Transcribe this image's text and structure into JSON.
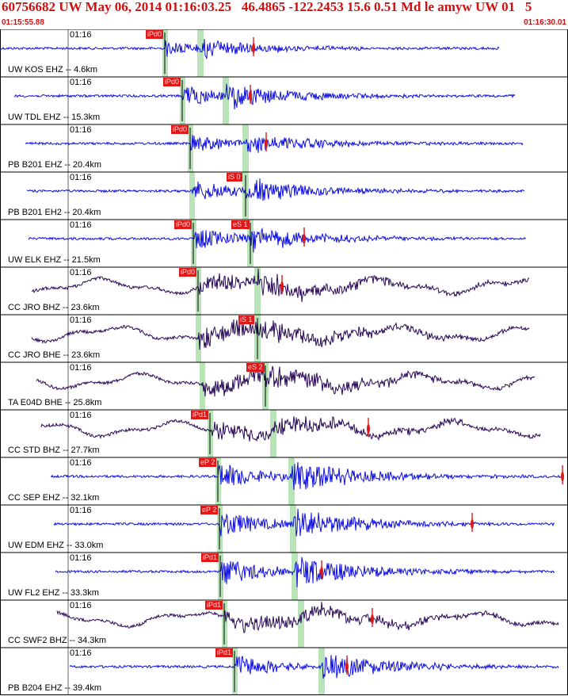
{
  "header": {
    "title": "60756682 UW May 06, 2014 01:16:03.25   46.4865 -122.2453 15.6 0.51 Md le amyw UW 01   5",
    "start_time": "01:15:55.88",
    "end_time": "01:16:30.01"
  },
  "colors": {
    "header_text": "#d01010",
    "trace_short_period": "#1010e0",
    "trace_broadband": "#2a0a5a",
    "pick_box": "#e01818",
    "pick_window": "#b8e4b8",
    "frame": "#000000"
  },
  "panels": [
    {
      "station": "UW KOS EHZ",
      "distance": "-- 4.6km",
      "tick": "01:16",
      "pick1": "iPd0",
      "pick2": "",
      "type": "sp",
      "p": 208,
      "s": 253,
      "amp": 10,
      "end": 630,
      "start": 0,
      "marker": 320
    },
    {
      "station": "UW TDL EHZ",
      "distance": "-- 15.3km",
      "tick": "01:16",
      "pick1": "iPd0",
      "pick2": "",
      "type": "sp",
      "p": 230,
      "s": 285,
      "amp": 14,
      "end": 650,
      "start": 18,
      "marker": 316
    },
    {
      "station": "PB B201 EHZ",
      "distance": "-- 20.4km",
      "tick": "01:16",
      "pick1": "iPd0",
      "pick2": "",
      "type": "sp",
      "p": 240,
      "s": 310,
      "amp": 12,
      "end": 660,
      "start": 32,
      "marker": 336
    },
    {
      "station": "PB B201 EH2",
      "distance": "-- 20.4km",
      "tick": "01:16",
      "pick1": "",
      "pick2": "iS 0",
      "type": "sp",
      "p": 242,
      "s": 310,
      "amp": 14,
      "end": 662,
      "start": 34,
      "marker": 0
    },
    {
      "station": "UW ELK EHZ",
      "distance": "-- 21.5km",
      "tick": "01:16",
      "pick1": "iPd0",
      "pick2": "eS 1",
      "type": "sp",
      "p": 244,
      "s": 316,
      "amp": 14,
      "end": 664,
      "start": 36,
      "marker": 384
    },
    {
      "station": "CC JRO BHZ",
      "distance": "-- 23.6km",
      "tick": "01:16",
      "pick1": "iPd0",
      "pick2": "",
      "type": "bb",
      "p": 250,
      "s": 325,
      "amp": 18,
      "end": 668,
      "start": 40,
      "marker": 356
    },
    {
      "station": "CC JRO BHE",
      "distance": "-- 23.6km",
      "tick": "01:16",
      "pick1": "",
      "pick2": "iS 1",
      "type": "bb",
      "p": 250,
      "s": 325,
      "amp": 20,
      "end": 668,
      "start": 40,
      "marker": 0
    },
    {
      "station": "TA E04D BHE",
      "distance": "-- 25.8km",
      "tick": "01:16",
      "pick1": "",
      "pick2": "eS 2",
      "type": "bb",
      "p": 255,
      "s": 335,
      "amp": 20,
      "end": 675,
      "start": 46,
      "marker": 0
    },
    {
      "station": "CC STD BHZ",
      "distance": "-- 27.7km",
      "tick": "01:16",
      "pick1": "iPd1",
      "pick2": "",
      "type": "bb",
      "p": 265,
      "s": 345,
      "amp": 16,
      "end": 682,
      "start": 52,
      "marker": 465
    },
    {
      "station": "CC SEP EHZ",
      "distance": "-- 32.1km",
      "tick": "01:16",
      "pick1": "eP 2",
      "pick2": "",
      "type": "sp",
      "p": 275,
      "s": 368,
      "amp": 18,
      "end": 708,
      "start": 64,
      "marker": 710
    },
    {
      "station": "UW EDM EHZ",
      "distance": "-- 33.0km",
      "tick": "01:16",
      "pick1": "eP 2",
      "pick2": "",
      "type": "sp",
      "p": 277,
      "s": 370,
      "amp": 18,
      "end": 700,
      "start": 68,
      "marker": 596
    },
    {
      "station": "UW FL2 EHZ",
      "distance": "-- 33.3km",
      "tick": "01:16",
      "pick1": "iPd1",
      "pick2": "",
      "type": "sp",
      "p": 278,
      "s": 372,
      "amp": 18,
      "end": 700,
      "start": 70,
      "marker": 406
    },
    {
      "station": "CC SWF2 BHZ",
      "distance": "-- 34.3km",
      "tick": "01:16",
      "pick1": "iPd1",
      "pick2": "",
      "type": "bb",
      "p": 283,
      "s": 380,
      "amp": 16,
      "end": 705,
      "start": 72,
      "marker": 470
    },
    {
      "station": "PB B204 EHZ",
      "distance": "-- 39.4km",
      "tick": "01:16",
      "pick1": "iPd1",
      "pick2": "",
      "type": "sp",
      "p": 296,
      "s": 406,
      "amp": 16,
      "end": 705,
      "start": 88,
      "marker": 438
    }
  ]
}
